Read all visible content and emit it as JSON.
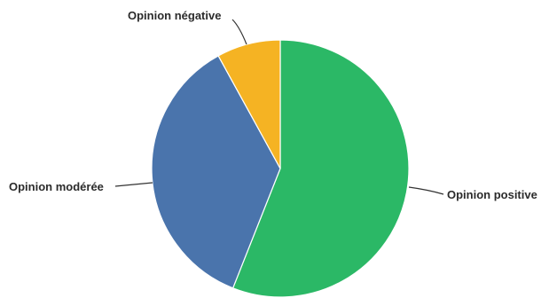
{
  "chart_data": {
    "type": "pie",
    "title": "",
    "slices": [
      {
        "label": "Opinion positive",
        "value": 56,
        "color": "#2bb866"
      },
      {
        "label": "Opinion modérée",
        "value": 36,
        "color": "#4a74ac"
      },
      {
        "label": "Opinion négative",
        "value": 8,
        "color": "#f5b323"
      }
    ],
    "start_angle_deg": 0,
    "direction": "clockwise",
    "legend": "none"
  }
}
